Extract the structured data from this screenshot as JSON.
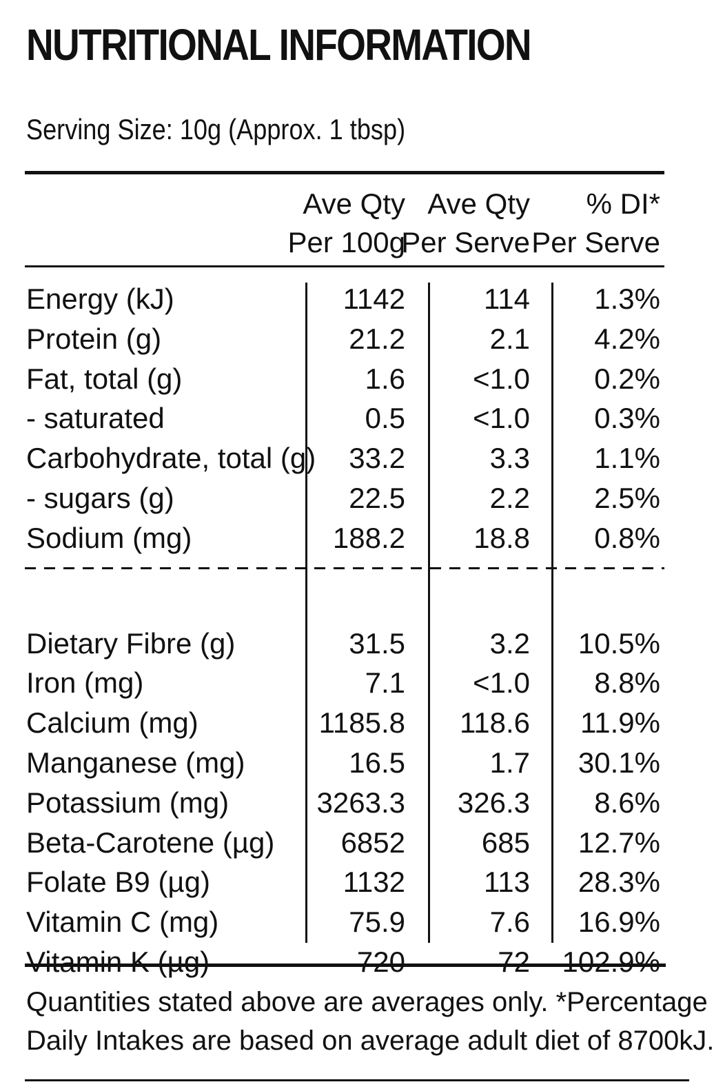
{
  "title": "NUTRITIONAL INFORMATION",
  "serving_size": "Serving Size: 10g (Approx. 1 tbsp)",
  "headers": {
    "col1_line1": "Ave Qty",
    "col1_line2": "Per 100g",
    "col2_line1": "Ave Qty",
    "col2_line2": "Per Serve",
    "col3_line1": "% DI*",
    "col3_line2": "Per Serve"
  },
  "rows": [
    {
      "name": "Energy (kJ)",
      "per100": "1142",
      "perServe": "114",
      "di": "1.3%"
    },
    {
      "name": "Protein (g)",
      "per100": "21.2",
      "perServe": "2.1",
      "di": "4.2%"
    },
    {
      "name": "Fat, total (g)",
      "per100": "1.6",
      "perServe": "<1.0",
      "di": "0.2%"
    },
    {
      "name": "- saturated",
      "per100": "0.5",
      "perServe": "<1.0",
      "di": "0.3%"
    },
    {
      "name": "Carbohydrate, total (g)",
      "per100": "33.2",
      "perServe": "3.3",
      "di": "1.1%"
    },
    {
      "name": "- sugars (g)",
      "per100": "22.5",
      "perServe": "2.2",
      "di": "2.5%"
    },
    {
      "name": "Sodium (mg)",
      "per100": "188.2",
      "perServe": "18.8",
      "di": "0.8%"
    },
    {
      "name": "Dietary Fibre (g)",
      "per100": "31.5",
      "perServe": "3.2",
      "di": "10.5%"
    },
    {
      "name": "Iron (mg)",
      "per100": "7.1",
      "perServe": "<1.0",
      "di": "8.8%"
    },
    {
      "name": "Calcium (mg)",
      "per100": "1185.8",
      "perServe": "118.6",
      "di": "11.9%"
    },
    {
      "name": "Manganese (mg)",
      "per100": "16.5",
      "perServe": "1.7",
      "di": "30.1%"
    },
    {
      "name": "Potassium (mg)",
      "per100": "3263.3",
      "perServe": "326.3",
      "di": "8.6%"
    },
    {
      "name": "Beta-Carotene (µg)",
      "per100": "6852",
      "perServe": "685",
      "di": "12.7%"
    },
    {
      "name": "Folate B9 (µg)",
      "per100": "1132",
      "perServe": "113",
      "di": "28.3%"
    },
    {
      "name": "Vitamin C (mg)",
      "per100": "75.9",
      "perServe": "7.6",
      "di": "16.9%"
    },
    {
      "name": "Vitamin K (µg)",
      "per100": "720",
      "perServe": "72",
      "di": "102.9%"
    }
  ],
  "footnote": {
    "line1": "Quantities stated above are averages only. *Percentage",
    "line2": "Daily Intakes are based on average adult diet of 8700kJ."
  }
}
